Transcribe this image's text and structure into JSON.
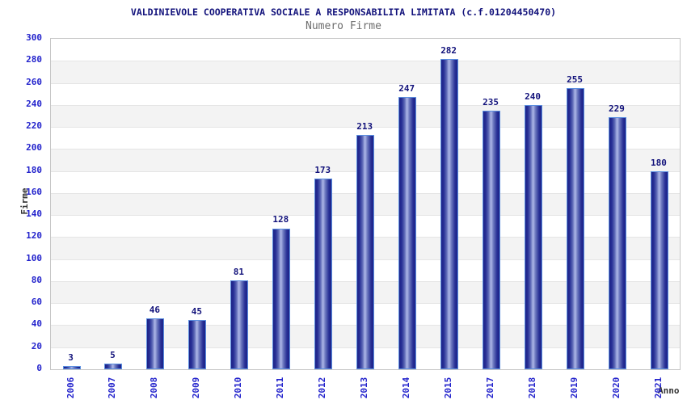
{
  "chart_data": {
    "type": "bar",
    "title": "VALDINIEVOLE COOPERATIVA SOCIALE A RESPONSABILITA LIMITATA (c.f.01204450470)",
    "subtitle": "Numero Firme",
    "xlabel": "Anno",
    "ylabel": "Firme",
    "categories": [
      "2006",
      "2007",
      "2008",
      "2009",
      "2010",
      "2011",
      "2012",
      "2013",
      "2014",
      "2015",
      "2017",
      "2018",
      "2019",
      "2020",
      "2021"
    ],
    "values": [
      3,
      5,
      46,
      45,
      81,
      128,
      173,
      213,
      247,
      282,
      235,
      240,
      255,
      229,
      180
    ],
    "ylim": [
      0,
      300
    ],
    "ytick_step": 20,
    "grid": "horizontal-bands-alternating",
    "legend_position": "none",
    "colors": {
      "bar_dark": "#1c2287",
      "bar_light": "#aeb8e8",
      "bar_border": "#5b8fe0",
      "tick_label": "#2323cc",
      "value_label": "#12127b",
      "title": "#12127b",
      "subtitle": "#6e6e6e",
      "axis_title": "#333333",
      "band_gray": "#f3f3f3",
      "gridline": "#e5e5e5",
      "plot_border": "#c6c6c6"
    }
  }
}
